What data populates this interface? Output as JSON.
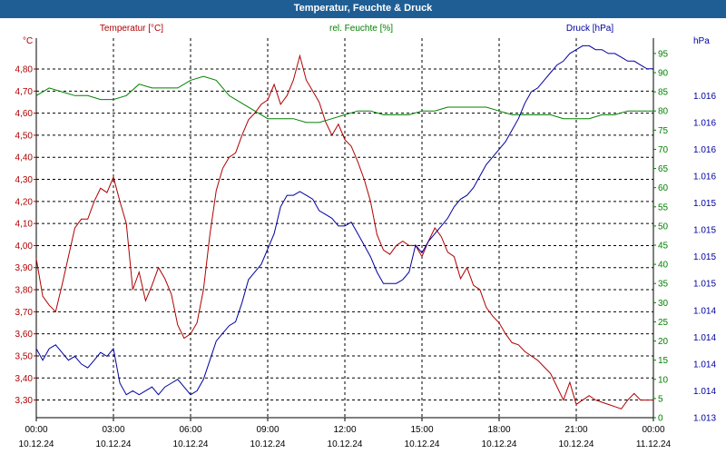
{
  "window": {
    "title": "Temperatur, Feuchte & Druck"
  },
  "colors": {
    "title_bar": "#1f5e95",
    "temperature": "#b00000",
    "humidity": "#008000",
    "pressure": "#0000a0",
    "grid": "#000000"
  },
  "chart_data": {
    "type": "line",
    "title": "Temperatur, Feuchte & Druck",
    "grid": true,
    "x_ticks": [
      {
        "time": "00:00",
        "date": "10.12.24"
      },
      {
        "time": "03:00",
        "date": "10.12.24"
      },
      {
        "time": "06:00",
        "date": "10.12.24"
      },
      {
        "time": "09:00",
        "date": "10.12.24"
      },
      {
        "time": "12:00",
        "date": "10.12.24"
      },
      {
        "time": "15:00",
        "date": "10.12.24"
      },
      {
        "time": "18:00",
        "date": "10.12.24"
      },
      {
        "time": "21:00",
        "date": "10.12.24"
      },
      {
        "time": "00:00",
        "date": "11.12.24"
      }
    ],
    "x_range_hours": [
      0,
      24
    ],
    "axes": {
      "temperature": {
        "label": "Temperatur [°C]",
        "unit": "°C",
        "ylim": [
          3.22,
          4.94
        ],
        "ticks": [
          "3,30",
          "3,40",
          "3,50",
          "3,60",
          "3,70",
          "3,80",
          "3,90",
          "4,00",
          "4,10",
          "4,20",
          "4,30",
          "4,40",
          "4,50",
          "4,60",
          "4,70",
          "4,80"
        ],
        "tick_values": [
          3.3,
          3.4,
          3.5,
          3.6,
          3.7,
          3.8,
          3.9,
          4.0,
          4.1,
          4.2,
          4.3,
          4.4,
          4.5,
          4.6,
          4.7,
          4.8
        ]
      },
      "humidity": {
        "label": "rel. Feuchte [%]",
        "unit": "%",
        "ylim": [
          0,
          99
        ],
        "ticks": [
          "0",
          "5",
          "10",
          "15",
          "20",
          "25",
          "30",
          "35",
          "40",
          "45",
          "50",
          "55",
          "60",
          "65",
          "70",
          "75",
          "80",
          "85",
          "90",
          "95"
        ],
        "tick_values": [
          0,
          5,
          10,
          15,
          20,
          25,
          30,
          35,
          40,
          45,
          50,
          55,
          60,
          65,
          70,
          75,
          80,
          85,
          90,
          95
        ]
      },
      "pressure": {
        "label": "Druck [hPa]",
        "unit": "hPa",
        "ylim": [
          0,
          99
        ],
        "ticks": [
          "1.013",
          "1.014",
          "1.014",
          "1.014",
          "1.014",
          "1.015",
          "1.015",
          "1.015",
          "1.015",
          "1.016",
          "1.016",
          "1.016",
          "1.016"
        ],
        "tick_values": [
          0,
          7,
          14,
          21,
          28,
          35,
          42,
          49,
          56,
          63,
          70,
          77,
          84
        ]
      }
    },
    "series": [
      {
        "name": "Temperatur [°C]",
        "axis": "temperature",
        "x": [
          0,
          0.25,
          0.5,
          0.75,
          1,
          1.25,
          1.5,
          1.75,
          2,
          2.25,
          2.5,
          2.75,
          3,
          3.25,
          3.5,
          3.75,
          4,
          4.25,
          4.5,
          4.75,
          5,
          5.25,
          5.5,
          5.75,
          6,
          6.25,
          6.5,
          6.75,
          7,
          7.25,
          7.5,
          7.75,
          8,
          8.25,
          8.5,
          8.75,
          9,
          9.25,
          9.5,
          9.75,
          10,
          10.25,
          10.5,
          10.75,
          11,
          11.25,
          11.5,
          11.75,
          12,
          12.25,
          12.5,
          12.75,
          13,
          13.25,
          13.5,
          13.75,
          14,
          14.25,
          14.5,
          14.75,
          15,
          15.25,
          15.5,
          15.75,
          16,
          16.25,
          16.5,
          16.75,
          17,
          17.25,
          17.5,
          17.75,
          18,
          18.25,
          18.5,
          18.75,
          19,
          19.25,
          19.5,
          19.75,
          20,
          20.25,
          20.5,
          20.75,
          21,
          21.25,
          21.5,
          21.75,
          22,
          22.25,
          22.5,
          22.75,
          23,
          23.25,
          23.5,
          23.75,
          24
        ],
        "values": [
          3.94,
          3.77,
          3.73,
          3.7,
          3.82,
          3.95,
          4.08,
          4.12,
          4.12,
          4.2,
          4.26,
          4.24,
          4.31,
          4.2,
          4.1,
          3.8,
          3.88,
          3.75,
          3.82,
          3.9,
          3.85,
          3.78,
          3.64,
          3.58,
          3.6,
          3.65,
          3.8,
          4.05,
          4.25,
          4.35,
          4.4,
          4.42,
          4.5,
          4.57,
          4.6,
          4.64,
          4.66,
          4.73,
          4.64,
          4.68,
          4.75,
          4.86,
          4.75,
          4.7,
          4.65,
          4.56,
          4.5,
          4.55,
          4.48,
          4.45,
          4.38,
          4.3,
          4.2,
          4.05,
          3.98,
          3.96,
          4.0,
          4.02,
          4.0,
          4.0,
          3.95,
          4.02,
          4.08,
          4.04,
          3.97,
          3.95,
          3.85,
          3.9,
          3.82,
          3.8,
          3.72,
          3.68,
          3.65,
          3.6,
          3.56,
          3.55,
          3.52,
          3.5,
          3.48,
          3.45,
          3.42,
          3.36,
          3.3,
          3.38,
          3.28,
          3.3,
          3.32,
          3.3,
          3.29,
          3.28,
          3.27,
          3.26,
          3.3,
          3.33,
          3.3,
          3.3,
          3.3
        ]
      },
      {
        "name": "rel. Feuchte [%]",
        "axis": "humidity",
        "x": [
          0,
          0.5,
          1,
          1.5,
          2,
          2.5,
          3,
          3.5,
          4,
          4.5,
          5,
          5.5,
          6,
          6.5,
          7,
          7.5,
          8,
          8.5,
          9,
          9.5,
          10,
          10.5,
          11,
          11.5,
          12,
          12.5,
          13,
          13.5,
          14,
          14.5,
          15,
          15.5,
          16,
          16.5,
          17,
          17.5,
          18,
          18.5,
          19,
          19.5,
          20,
          20.5,
          21,
          21.5,
          22,
          22.5,
          23,
          23.5,
          24
        ],
        "values": [
          84,
          86,
          85,
          84,
          84,
          83,
          83,
          84,
          87,
          86,
          86,
          86,
          88,
          89,
          88,
          84,
          82,
          80,
          78,
          78,
          78,
          77,
          77,
          78,
          79,
          80,
          80,
          79,
          79,
          79,
          80,
          80,
          81,
          81,
          81,
          81,
          80,
          79,
          79,
          79,
          79,
          78,
          78,
          78,
          79,
          79,
          80,
          80,
          80
        ]
      },
      {
        "name": "Druck [hPa]",
        "axis": "pressure",
        "x": [
          0,
          0.25,
          0.5,
          0.75,
          1,
          1.25,
          1.5,
          1.75,
          2,
          2.25,
          2.5,
          2.75,
          3,
          3.25,
          3.5,
          3.75,
          4,
          4.25,
          4.5,
          4.75,
          5,
          5.25,
          5.5,
          5.75,
          6,
          6.25,
          6.5,
          6.75,
          7,
          7.25,
          7.5,
          7.75,
          8,
          8.25,
          8.5,
          8.75,
          9,
          9.25,
          9.5,
          9.75,
          10,
          10.25,
          10.5,
          10.75,
          11,
          11.25,
          11.5,
          11.75,
          12,
          12.25,
          12.5,
          12.75,
          13,
          13.25,
          13.5,
          13.75,
          14,
          14.25,
          14.5,
          14.75,
          15,
          15.25,
          15.5,
          15.75,
          16,
          16.25,
          16.5,
          16.75,
          17,
          17.25,
          17.5,
          17.75,
          18,
          18.25,
          18.5,
          18.75,
          19,
          19.25,
          19.5,
          19.75,
          20,
          20.25,
          20.5,
          20.75,
          21,
          21.25,
          21.5,
          21.75,
          22,
          22.25,
          22.5,
          22.75,
          23,
          23.25,
          23.5,
          23.75,
          24
        ],
        "values": [
          18,
          15,
          18,
          19,
          17,
          15,
          16,
          14,
          13,
          15,
          17,
          16,
          18,
          9,
          6,
          7,
          6,
          7,
          8,
          6,
          8,
          9,
          10,
          8,
          6,
          7,
          10,
          15,
          20,
          22,
          24,
          25,
          30,
          36,
          38,
          40,
          44,
          48,
          55,
          58,
          58,
          59,
          58,
          57,
          54,
          53,
          52,
          50,
          50,
          51,
          48,
          45,
          42,
          38,
          35,
          35,
          35,
          36,
          38,
          45,
          43,
          46,
          48,
          50,
          52,
          55,
          57,
          58,
          60,
          63,
          66,
          68,
          70,
          72,
          75,
          78,
          82,
          85,
          86,
          88,
          90,
          92,
          93,
          95,
          96,
          97,
          97,
          96,
          96,
          95,
          95,
          94,
          93,
          93,
          92,
          91,
          91
        ]
      }
    ]
  }
}
